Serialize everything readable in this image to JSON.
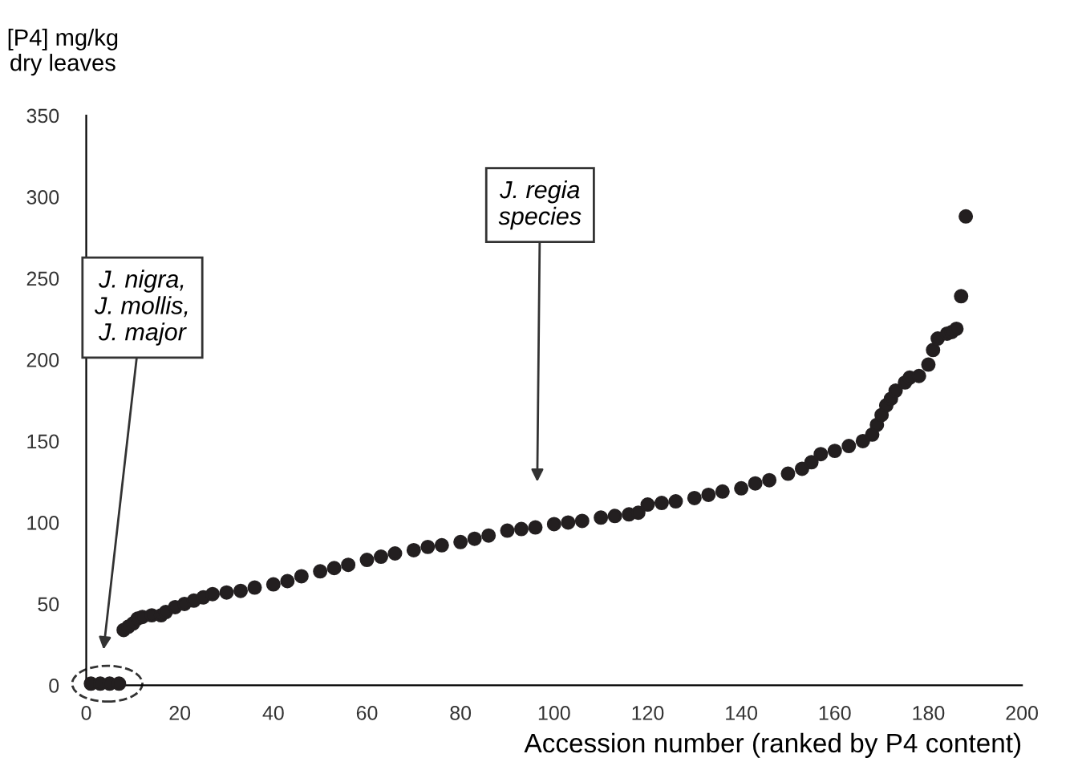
{
  "chart_data": {
    "type": "scatter",
    "xlabel": "Accession number (ranked by P4 content)",
    "ylabel": "[P4] mg/kg\ndry leaves",
    "x": [
      1,
      3,
      5,
      7,
      8,
      9,
      10,
      11,
      12,
      14,
      16,
      17,
      19,
      21,
      23,
      25,
      27,
      30,
      33,
      36,
      40,
      43,
      46,
      50,
      53,
      56,
      60,
      63,
      66,
      70,
      73,
      76,
      80,
      83,
      86,
      90,
      93,
      96,
      100,
      103,
      106,
      110,
      113,
      116,
      118,
      120,
      123,
      126,
      130,
      133,
      136,
      140,
      143,
      146,
      150,
      153,
      155,
      157,
      160,
      163,
      166,
      168,
      169,
      170,
      171,
      172,
      173,
      175,
      176,
      178,
      180,
      181,
      182,
      184,
      185,
      186,
      187,
      188
    ],
    "series": [
      {
        "color": "#231f20",
        "values": [
          1,
          1,
          1,
          1,
          34,
          36,
          38,
          41,
          42,
          43,
          43,
          45,
          48,
          50,
          52,
          54,
          56,
          57,
          58,
          60,
          62,
          64,
          67,
          70,
          72,
          74,
          77,
          79,
          81,
          83,
          85,
          86,
          88,
          90,
          92,
          95,
          96,
          97,
          99,
          100,
          101,
          103,
          104,
          105,
          106,
          111,
          112,
          113,
          115,
          117,
          119,
          121,
          124,
          126,
          130,
          133,
          137,
          142,
          144,
          147,
          150,
          154,
          160,
          166,
          172,
          176,
          181,
          186,
          189,
          190,
          197,
          206,
          213,
          216,
          217,
          219,
          239,
          288
        ]
      }
    ],
    "xlim": [
      0,
      200
    ],
    "xticks": [
      0,
      20,
      40,
      60,
      80,
      100,
      120,
      140,
      160,
      180,
      200
    ],
    "ylim": [
      0,
      350
    ],
    "yticks": [
      0,
      50,
      100,
      150,
      200,
      250,
      300,
      350
    ],
    "marker": "circle",
    "grid": false,
    "legend": false,
    "annotations": [
      "J. nigra,\nJ. mollis,\nJ. major",
      "J. regia\nspecies"
    ]
  }
}
